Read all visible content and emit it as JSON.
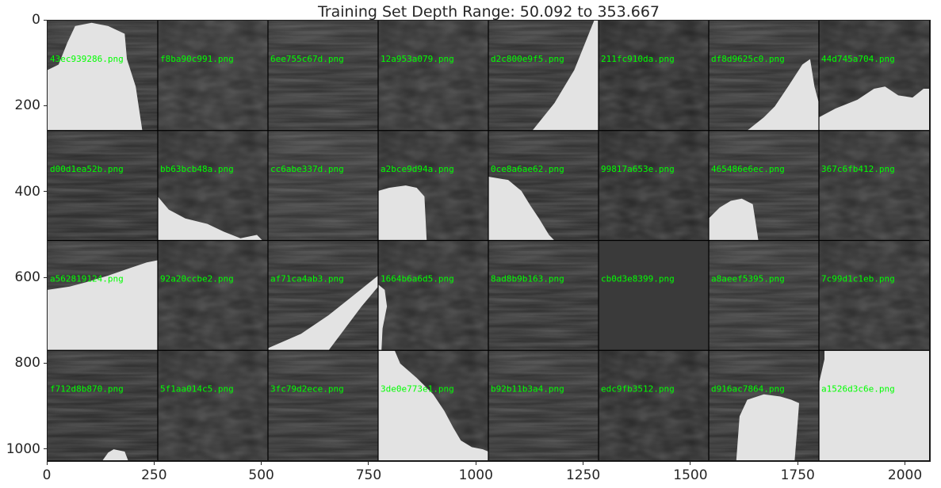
{
  "title": "Training Set Depth Range: 50.092 to 353.667",
  "axes": {
    "x": {
      "min": 0,
      "max": 2060,
      "ticks": [
        0,
        250,
        500,
        750,
        1000,
        1250,
        1500,
        1750,
        2000
      ]
    },
    "y": {
      "min": 0,
      "max": 1030,
      "ticks": [
        0,
        200,
        400,
        600,
        800,
        1000
      ],
      "inverted": true
    }
  },
  "grid": {
    "rows": 4,
    "cols": 8,
    "label_color": "#00ff00",
    "separator_color": "#000000"
  },
  "tiles": [
    {
      "name": "43ec939286.png",
      "bg": "#2a2a2a",
      "mask": "top-left-blob"
    },
    {
      "name": "f8ba90c991.png",
      "bg": "#303030",
      "mask": "none"
    },
    {
      "name": "6ee755c67d.png",
      "bg": "#2c2c2c",
      "mask": "none"
    },
    {
      "name": "12a953a079.png",
      "bg": "#2e2e2e",
      "mask": "none"
    },
    {
      "name": "d2c800e9f5.png",
      "bg": "#2a2a2a",
      "mask": "diag-right"
    },
    {
      "name": "211fc910da.png",
      "bg": "#262626",
      "mask": "none"
    },
    {
      "name": "df8d9625c0.png",
      "bg": "#2b2b2b",
      "mask": "bottom-right-wedge"
    },
    {
      "name": "44d745a704.png",
      "bg": "#2a2a2a",
      "mask": "bottom-hill"
    },
    {
      "name": "d00d1ea52b.png",
      "bg": "#262626",
      "mask": "none"
    },
    {
      "name": "bb63bcb48a.png",
      "bg": "#2c2c2c",
      "mask": "bottom-left-slope"
    },
    {
      "name": "cc6abe337d.png",
      "bg": "#303030",
      "mask": "none"
    },
    {
      "name": "a2bce9d94a.png",
      "bg": "#2b2b2b",
      "mask": "left-lump"
    },
    {
      "name": "0ce8a6ae62.png",
      "bg": "#282828",
      "mask": "left-slab"
    },
    {
      "name": "99817a653e.png",
      "bg": "#272727",
      "mask": "none"
    },
    {
      "name": "465486e6ec.png",
      "bg": "#2c2c2c",
      "mask": "small-left-blob"
    },
    {
      "name": "367c6fb412.png",
      "bg": "#2d2d2d",
      "mask": "none"
    },
    {
      "name": "a562819124.png",
      "bg": "#2a2a2a",
      "mask": "bottom-large"
    },
    {
      "name": "92a20ccbe2.png",
      "bg": "#2c2c2c",
      "mask": "none"
    },
    {
      "name": "af71ca4ab3.png",
      "bg": "#2a2a2a",
      "mask": "diag-band"
    },
    {
      "name": "1664b6a6d5.png",
      "bg": "#2c2c2c",
      "mask": "left-sliver"
    },
    {
      "name": "8ad8b9b163.png",
      "bg": "#292929",
      "mask": "none"
    },
    {
      "name": "cb0d3e8399.png",
      "bg": "#3a3a3a",
      "mask": "none"
    },
    {
      "name": "a8aeef5395.png",
      "bg": "#2e2e2e",
      "mask": "none"
    },
    {
      "name": "7c99d1c1eb.png",
      "bg": "#2c2c2c",
      "mask": "none"
    },
    {
      "name": "f712d8b870.png",
      "bg": "#262626",
      "mask": "bottom-notch"
    },
    {
      "name": "5f1aa014c5.png",
      "bg": "#2d2d2d",
      "mask": "none"
    },
    {
      "name": "3fc79d2ece.png",
      "bg": "#2a2a2a",
      "mask": "none"
    },
    {
      "name": "3de0e773e1.png",
      "bg": "#2a2a2a",
      "mask": "top-left-diag"
    },
    {
      "name": "b92b11b3a4.png",
      "bg": "#2b2b2b",
      "mask": "none"
    },
    {
      "name": "edc9fb3512.png",
      "bg": "#282828",
      "mask": "none"
    },
    {
      "name": "d916ac7864.png",
      "bg": "#2a2a2a",
      "mask": "bottom-mound"
    },
    {
      "name": "a1526d3c6e.png",
      "bg": "#2a2a2a",
      "mask": "full"
    }
  ]
}
